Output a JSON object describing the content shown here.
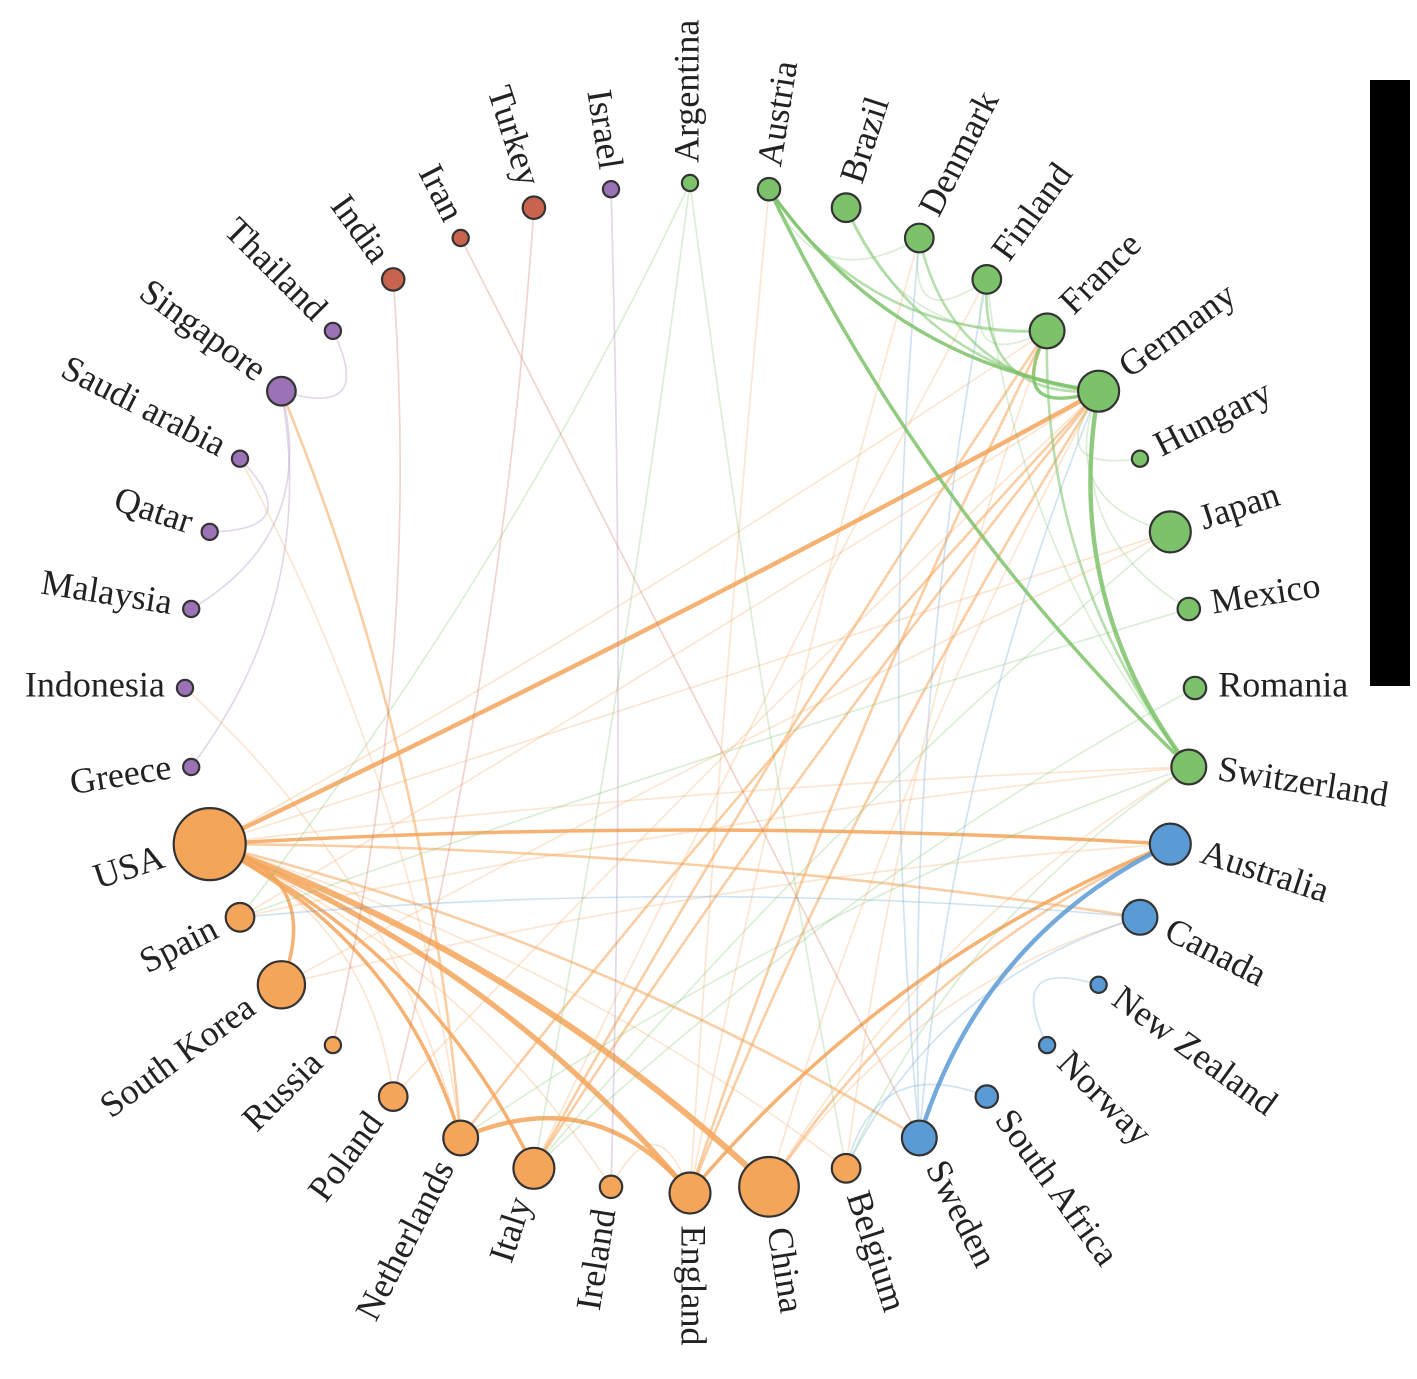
{
  "colors": {
    "green": "#7cc26a",
    "orange": "#f5a55a",
    "blue": "#5b9bd5",
    "purple": "#9b72b5",
    "red": "#c8644d"
  },
  "nodes": [
    {
      "id": "Argentina",
      "label": "Argentina",
      "group": "green",
      "size": 1
    },
    {
      "id": "Austria",
      "label": "Austria",
      "group": "green",
      "size": 2
    },
    {
      "id": "Brazil",
      "label": "Brazil",
      "group": "green",
      "size": 3
    },
    {
      "id": "Denmark",
      "label": "Denmark",
      "group": "green",
      "size": 3
    },
    {
      "id": "Finland",
      "label": "Finland",
      "group": "green",
      "size": 3
    },
    {
      "id": "France",
      "label": "France",
      "group": "green",
      "size": 4
    },
    {
      "id": "Germany",
      "label": "Germany",
      "group": "green",
      "size": 5
    },
    {
      "id": "Hungary",
      "label": "Hungary",
      "group": "green",
      "size": 1
    },
    {
      "id": "Japan",
      "label": "Japan",
      "group": "green",
      "size": 5
    },
    {
      "id": "Mexico",
      "label": "Mexico",
      "group": "green",
      "size": 2
    },
    {
      "id": "Romania",
      "label": "Romania",
      "group": "green",
      "size": 2
    },
    {
      "id": "Switzerland",
      "label": "Switzerland",
      "group": "green",
      "size": 4
    },
    {
      "id": "Australia",
      "label": "Australia",
      "group": "blue",
      "size": 5
    },
    {
      "id": "Canada",
      "label": "Canada",
      "group": "blue",
      "size": 4
    },
    {
      "id": "New Zealand",
      "label": "New Zealand",
      "group": "blue",
      "size": 1
    },
    {
      "id": "Norway",
      "label": "Norway",
      "group": "blue",
      "size": 1
    },
    {
      "id": "South Africa",
      "label": "South Africa",
      "group": "blue",
      "size": 2
    },
    {
      "id": "Sweden",
      "label": "Sweden",
      "group": "blue",
      "size": 4
    },
    {
      "id": "Belgium",
      "label": "Belgium",
      "group": "orange",
      "size": 3
    },
    {
      "id": "China",
      "label": "China",
      "group": "orange",
      "size": 8
    },
    {
      "id": "England",
      "label": "England",
      "group": "orange",
      "size": 5
    },
    {
      "id": "Ireland",
      "label": "Ireland",
      "group": "orange",
      "size": 2
    },
    {
      "id": "Italy",
      "label": "Italy",
      "group": "orange",
      "size": 5
    },
    {
      "id": "Netherlands",
      "label": "Netherlands",
      "group": "orange",
      "size": 4
    },
    {
      "id": "Poland",
      "label": "Poland",
      "group": "orange",
      "size": 3
    },
    {
      "id": "Russia",
      "label": "Russia",
      "group": "orange",
      "size": 1
    },
    {
      "id": "South Korea",
      "label": "South Korea",
      "group": "orange",
      "size": 6
    },
    {
      "id": "Spain",
      "label": "Spain",
      "group": "orange",
      "size": 3
    },
    {
      "id": "USA",
      "label": "USA",
      "group": "orange",
      "size": 10
    },
    {
      "id": "Greece",
      "label": "Greece",
      "group": "purple",
      "size": 1
    },
    {
      "id": "Indonesia",
      "label": "Indonesia",
      "group": "purple",
      "size": 1
    },
    {
      "id": "Malaysia",
      "label": "Malaysia",
      "group": "purple",
      "size": 1
    },
    {
      "id": "Qatar",
      "label": "Qatar",
      "group": "purple",
      "size": 1
    },
    {
      "id": "Saudi arabia",
      "label": "Saudi arabia",
      "group": "purple",
      "size": 1
    },
    {
      "id": "Singapore",
      "label": "Singapore",
      "group": "purple",
      "size": 3
    },
    {
      "id": "Thailand",
      "label": "Thailand",
      "group": "purple",
      "size": 1
    },
    {
      "id": "India",
      "label": "India",
      "group": "red",
      "size": 2
    },
    {
      "id": "Iran",
      "label": "Iran",
      "group": "red",
      "size": 1
    },
    {
      "id": "Turkey",
      "label": "Turkey",
      "group": "red",
      "size": 2
    },
    {
      "id": "Israel",
      "label": "Israel",
      "group": "purple",
      "size": 1
    }
  ],
  "edges": [
    {
      "source": "USA",
      "target": "Germany",
      "weight": 4
    },
    {
      "source": "USA",
      "target": "Australia",
      "weight": 3
    },
    {
      "source": "USA",
      "target": "Canada",
      "weight": 2
    },
    {
      "source": "USA",
      "target": "China",
      "weight": 6
    },
    {
      "source": "USA",
      "target": "England",
      "weight": 5
    },
    {
      "source": "USA",
      "target": "Sweden",
      "weight": 2
    },
    {
      "source": "USA",
      "target": "Netherlands",
      "weight": 3
    },
    {
      "source": "USA",
      "target": "Italy",
      "weight": 3
    },
    {
      "source": "USA",
      "target": "South Korea",
      "weight": 3
    },
    {
      "source": "USA",
      "target": "Switzerland",
      "weight": 1
    },
    {
      "source": "USA",
      "target": "France",
      "weight": 1
    },
    {
      "source": "USA",
      "target": "Japan",
      "weight": 1
    },
    {
      "source": "USA",
      "target": "Belgium",
      "weight": 1
    },
    {
      "source": "USA",
      "target": "Poland",
      "weight": 1
    },
    {
      "source": "USA",
      "target": "Ireland",
      "weight": 1
    },
    {
      "source": "Netherlands",
      "target": "England",
      "weight": 4
    },
    {
      "source": "Netherlands",
      "target": "Singapore",
      "weight": 2
    },
    {
      "source": "Netherlands",
      "target": "Germany",
      "weight": 2
    },
    {
      "source": "Netherlands",
      "target": "Indonesia",
      "weight": 1
    },
    {
      "source": "Netherlands",
      "target": "Saudi arabia",
      "weight": 1
    },
    {
      "source": "Italy",
      "target": "Germany",
      "weight": 2
    },
    {
      "source": "Italy",
      "target": "France",
      "weight": 2
    },
    {
      "source": "Italy",
      "target": "Finland",
      "weight": 1
    },
    {
      "source": "England",
      "target": "Australia",
      "weight": 3
    },
    {
      "source": "England",
      "target": "Germany",
      "weight": 2
    },
    {
      "source": "England",
      "target": "France",
      "weight": 2
    },
    {
      "source": "England",
      "target": "Austria",
      "weight": 1
    },
    {
      "source": "England",
      "target": "Denmark",
      "weight": 1
    },
    {
      "source": "China",
      "target": "Australia",
      "weight": 2
    },
    {
      "source": "China",
      "target": "Germany",
      "weight": 1
    },
    {
      "source": "China",
      "target": "Switzerland",
      "weight": 1
    },
    {
      "source": "China",
      "target": "Canada",
      "weight": 1
    },
    {
      "source": "Sweden",
      "target": "Australia",
      "weight": 4
    },
    {
      "source": "Sweden",
      "target": "Germany",
      "weight": 1
    },
    {
      "source": "Sweden",
      "target": "Finland",
      "weight": 1
    },
    {
      "source": "Sweden",
      "target": "Denmark",
      "weight": 1
    },
    {
      "source": "Austria",
      "target": "Germany",
      "weight": 3
    },
    {
      "source": "Austria",
      "target": "France",
      "weight": 2
    },
    {
      "source": "Austria",
      "target": "Switzerland",
      "weight": 3
    },
    {
      "source": "Austria",
      "target": "Denmark",
      "weight": 1
    },
    {
      "source": "Brazil",
      "target": "Germany",
      "weight": 2
    },
    {
      "source": "Brazil",
      "target": "France",
      "weight": 1
    },
    {
      "source": "Denmark",
      "target": "Germany",
      "weight": 2
    },
    {
      "source": "Denmark",
      "target": "Finland",
      "weight": 1
    },
    {
      "source": "Finland",
      "target": "Germany",
      "weight": 2
    },
    {
      "source": "Finland",
      "target": "France",
      "weight": 1
    },
    {
      "source": "Finland",
      "target": "Switzerland",
      "weight": 1
    },
    {
      "source": "France",
      "target": "Germany",
      "weight": 3
    },
    {
      "source": "France",
      "target": "Switzerland",
      "weight": 2
    },
    {
      "source": "Germany",
      "target": "Switzerland",
      "weight": 4
    },
    {
      "source": "Germany",
      "target": "Japan",
      "weight": 1
    },
    {
      "source": "Germany",
      "target": "Hungary",
      "weight": 1
    },
    {
      "source": "Germany",
      "target": "Mexico",
      "weight": 1
    },
    {
      "source": "Singapore",
      "target": "Greece",
      "weight": 1
    },
    {
      "source": "Singapore",
      "target": "Malaysia",
      "weight": 1
    },
    {
      "source": "Singapore",
      "target": "Thailand",
      "weight": 1
    },
    {
      "source": "Spain",
      "target": "Germany",
      "weight": 1
    },
    {
      "source": "Spain",
      "target": "Switzerland",
      "weight": 1
    },
    {
      "source": "South Korea",
      "target": "Japan",
      "weight": 1
    },
    {
      "source": "South Korea",
      "target": "Australia",
      "weight": 1
    },
    {
      "source": "Argentina",
      "target": "Spain",
      "weight": 1
    },
    {
      "source": "Argentina",
      "target": "Italy",
      "weight": 1
    },
    {
      "source": "Argentina",
      "target": "Belgium",
      "weight": 1
    },
    {
      "source": "Israel",
      "target": "Ireland",
      "weight": 1
    },
    {
      "source": "Turkey",
      "target": "Poland",
      "weight": 1
    },
    {
      "source": "Iran",
      "target": "Sweden",
      "weight": 1
    },
    {
      "source": "India",
      "target": "Russia",
      "weight": 1
    },
    {
      "source": "Saudi arabia",
      "target": "Qatar",
      "weight": 1
    },
    {
      "source": "Canada",
      "target": "Belgium",
      "weight": 1
    },
    {
      "source": "Canada",
      "target": "Spain",
      "weight": 1
    },
    {
      "source": "New Zealand",
      "target": "Norway",
      "weight": 1
    },
    {
      "source": "South Africa",
      "target": "Belgium",
      "weight": 1
    },
    {
      "source": "Switzerland",
      "target": "Belgium",
      "weight": 1
    },
    {
      "source": "Switzerland",
      "target": "Netherlands",
      "weight": 1
    },
    {
      "source": "Japan",
      "target": "Italy",
      "weight": 1
    },
    {
      "source": "Romania",
      "target": "Italy",
      "weight": 1
    },
    {
      "source": "Mexico",
      "target": "Spain",
      "weight": 1
    },
    {
      "source": "Poland",
      "target": "Germany",
      "weight": 1
    },
    {
      "source": "Belgium",
      "target": "France",
      "weight": 1
    },
    {
      "source": "Ireland",
      "target": "England",
      "weight": 1
    }
  ]
}
